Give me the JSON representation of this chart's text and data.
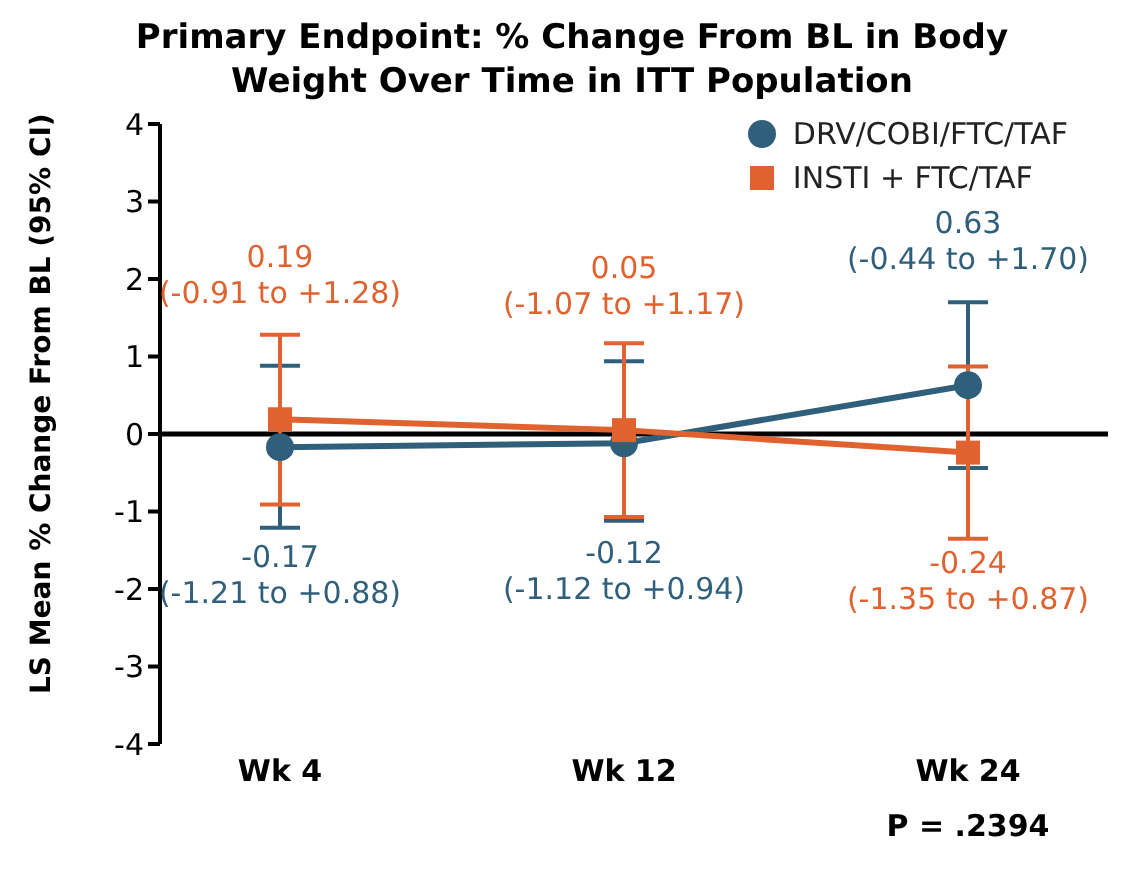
{
  "chart_data": {
    "type": "line",
    "title": "Primary Endpoint: % Change From BL in Body Weight Over Time in ITT Population",
    "ylabel": "LS Mean % Change From BL (95% CI)",
    "categories": [
      "Wk 4",
      "Wk 12",
      "Wk 24"
    ],
    "ylim": [
      -4,
      4
    ],
    "yticks": [
      -4,
      -3,
      -2,
      -1,
      0,
      1,
      2,
      3,
      4
    ],
    "grid": false,
    "legend": "top right",
    "series": [
      {
        "name": "DRV/COBI/FTC/TAF",
        "color": "#2f5f7a",
        "marker": "circle",
        "values": [
          -0.17,
          -0.12,
          0.63
        ],
        "errors": [
          [
            -1.21,
            0.88
          ],
          [
            -1.12,
            0.94
          ],
          [
            -0.44,
            1.7
          ]
        ],
        "value_labels": [
          "-0.17\n(-1.21 to +0.88)",
          "-0.12\n(-1.12 to +0.94)",
          "0.63\n(-0.44 to +1.70)"
        ]
      },
      {
        "name": "INSTI + FTC/TAF",
        "color": "#e0622f",
        "marker": "square",
        "values": [
          0.19,
          0.05,
          -0.24
        ],
        "errors": [
          [
            -0.91,
            1.28
          ],
          [
            -1.07,
            1.17
          ],
          [
            -1.35,
            0.87
          ]
        ],
        "value_labels": [
          "0.19\n(-0.91 to +1.28)",
          "0.05\n(-1.07 to +1.17)",
          "-0.24\n(-1.35 to +0.87)"
        ]
      }
    ],
    "ref_lines": [
      {
        "axis": "y",
        "value": 0,
        "color": "#000000"
      }
    ],
    "annotations": [
      "P = .2394"
    ]
  }
}
